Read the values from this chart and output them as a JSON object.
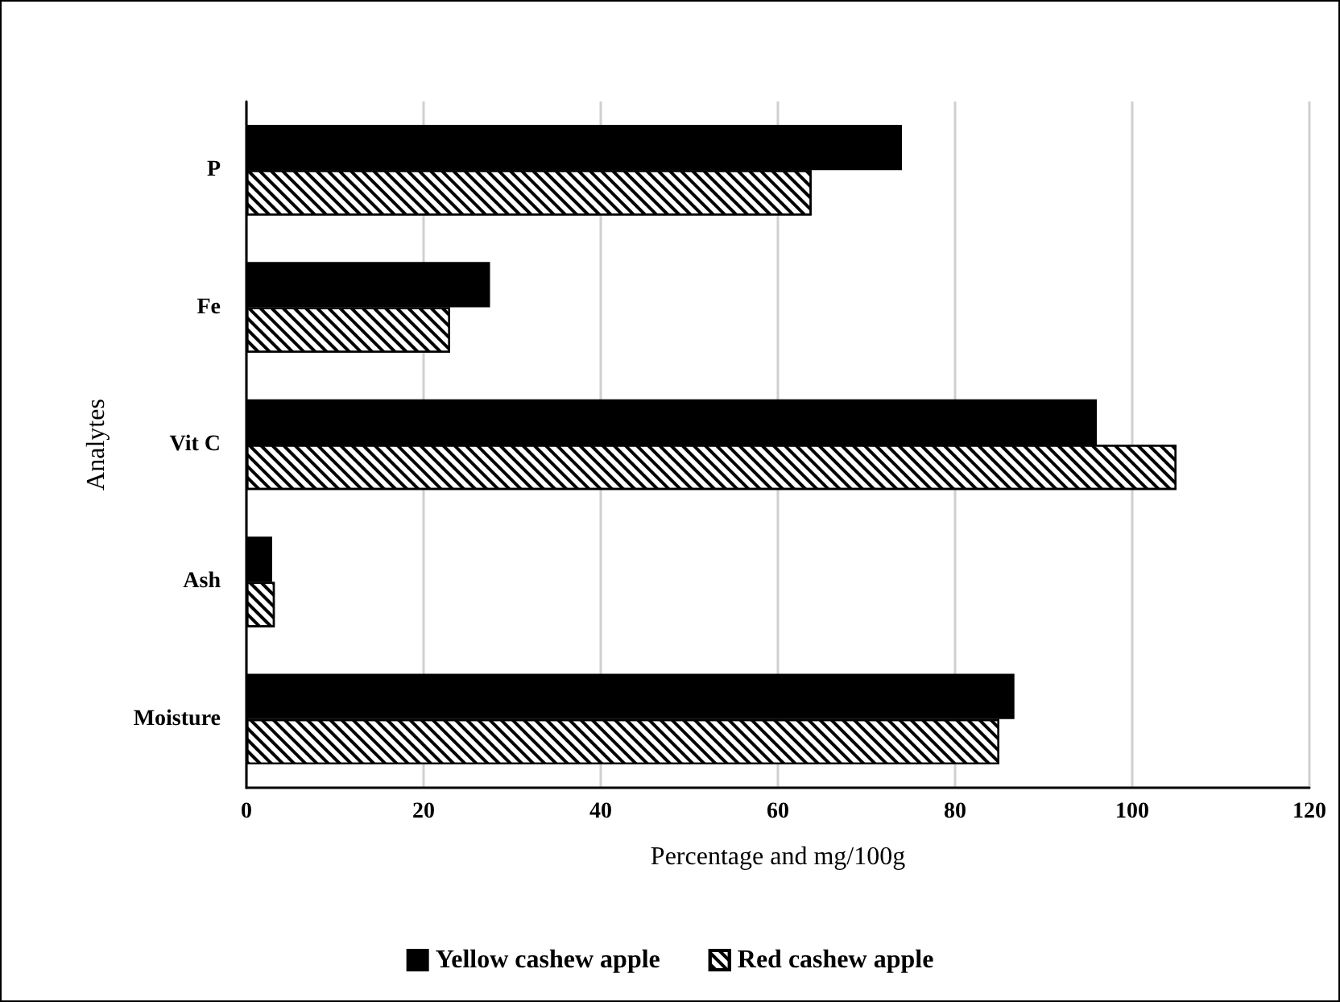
{
  "chart_data": {
    "type": "bar",
    "orientation": "horizontal",
    "xlabel": "Percentage and mg/100g",
    "ylabel": "Analytes",
    "categories": [
      "P",
      "Fe",
      "Vit C",
      "Ash",
      "Moisture"
    ],
    "series": [
      {
        "name": "Yellow cashew apple",
        "color": "#000000",
        "values": [
          74,
          27.5,
          96,
          2.9,
          86.7
        ]
      },
      {
        "name": "Red cashew apple",
        "color": "#ffffff",
        "values": [
          63.8,
          23,
          105,
          3.2,
          85
        ]
      }
    ],
    "xlim": [
      0,
      120
    ],
    "xticks": [
      0,
      20,
      40,
      60,
      80,
      100,
      120
    ],
    "grid": "x",
    "legend": "bottom"
  }
}
